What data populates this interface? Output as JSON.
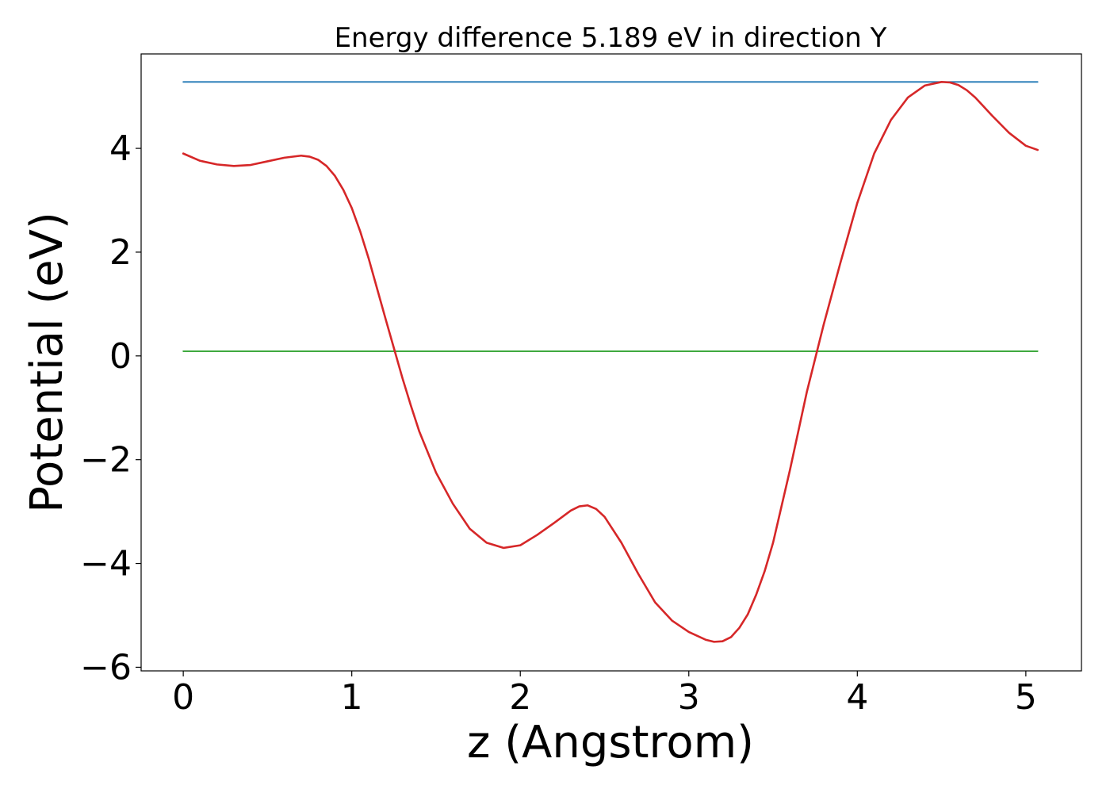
{
  "chart_data": {
    "type": "line",
    "title": "Energy difference 5.189 eV in direction Y",
    "xlabel": "z (Angstrom)",
    "ylabel": "Potential (eV)",
    "xlim": [
      -0.25,
      5.33
    ],
    "ylim": [
      -6.07,
      5.82
    ],
    "xticks": [
      0,
      1,
      2,
      3,
      4,
      5
    ],
    "xtick_labels": [
      "0",
      "1",
      "2",
      "3",
      "4",
      "5"
    ],
    "yticks": [
      -6,
      -4,
      -2,
      0,
      2,
      4
    ],
    "ytick_labels": [
      "−6",
      "−4",
      "−2",
      "0",
      "2",
      "4"
    ],
    "grid": false,
    "series": [
      {
        "color": "#d62728",
        "x": [
          0,
          0.1,
          0.2,
          0.3,
          0.4,
          0.5,
          0.6,
          0.7,
          0.75,
          0.8,
          0.85,
          0.9,
          0.95,
          1.0,
          1.05,
          1.1,
          1.15,
          1.2,
          1.25,
          1.3,
          1.35,
          1.4,
          1.5,
          1.6,
          1.7,
          1.8,
          1.9,
          2.0,
          2.1,
          2.2,
          2.3,
          2.35,
          2.4,
          2.45,
          2.5,
          2.6,
          2.7,
          2.8,
          2.9,
          3.0,
          3.1,
          3.15,
          3.2,
          3.25,
          3.3,
          3.35,
          3.4,
          3.45,
          3.5,
          3.6,
          3.7,
          3.8,
          3.9,
          4.0,
          4.1,
          4.2,
          4.3,
          4.4,
          4.5,
          4.55,
          4.6,
          4.65,
          4.7,
          4.8,
          4.9,
          5.0,
          5.07
        ],
        "y": [
          3.9,
          3.76,
          3.69,
          3.66,
          3.68,
          3.75,
          3.82,
          3.86,
          3.84,
          3.78,
          3.66,
          3.47,
          3.2,
          2.85,
          2.4,
          1.88,
          1.3,
          0.72,
          0.15,
          -0.42,
          -0.95,
          -1.45,
          -2.25,
          -2.85,
          -3.33,
          -3.6,
          -3.7,
          -3.65,
          -3.45,
          -3.22,
          -2.98,
          -2.9,
          -2.88,
          -2.95,
          -3.1,
          -3.6,
          -4.2,
          -4.75,
          -5.1,
          -5.32,
          -5.47,
          -5.51,
          -5.5,
          -5.42,
          -5.24,
          -4.98,
          -4.6,
          -4.15,
          -3.6,
          -2.2,
          -0.7,
          0.6,
          1.8,
          2.95,
          3.9,
          4.55,
          4.98,
          5.21,
          5.28,
          5.27,
          5.22,
          5.12,
          4.98,
          4.63,
          4.3,
          4.05,
          3.97
        ]
      },
      {
        "color": "#1f77b4",
        "x": [
          0,
          5.07
        ],
        "y": [
          5.28,
          5.28
        ]
      },
      {
        "color": "#2ca02c",
        "x": [
          0,
          5.07
        ],
        "y": [
          0.09,
          0.09
        ]
      }
    ]
  }
}
